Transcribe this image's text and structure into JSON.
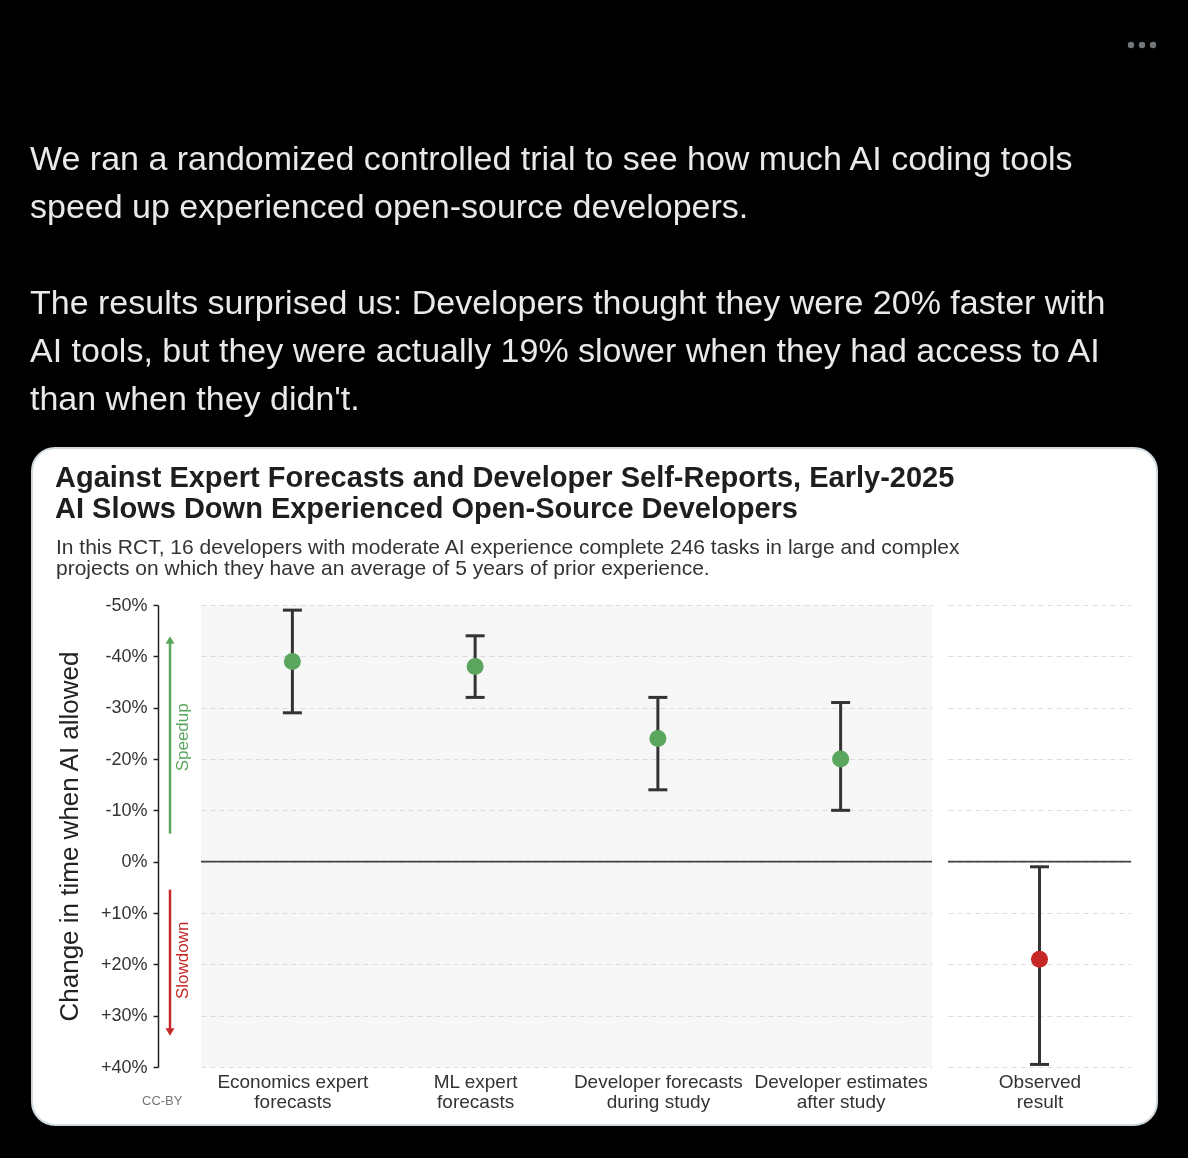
{
  "chart_data": [
    {
      "type": "scatter",
      "title": "Against Expert Forecasts and Developer Self-Reports, Early-2025 AI Slows Down Experienced Open-Source Developers",
      "subtitle": "In this RCT, 16 developers with moderate AI experience complete 246 tasks in large and complex projects on which they have an average of 5 years of prior experience.",
      "ylabel": "Change in time when AI allowed",
      "annotations": [
        "We ran a randomized controlled trial to see how much AI coding tools speed up experienced open-source developers.",
        "The results surprised us: Developers thought they were 20% faster with AI tools, but they were actually 19% slower when they had access to AI than when they didn't.",
        "Speedup",
        "Slowdown",
        "CC-BY"
      ],
      "categories": [
        "Economics expert forecasts",
        "ML expert forecasts",
        "Developer forecasts during study",
        "Developer estimates after study"
      ],
      "series": [
        {
          "color": "#5aa65e",
          "values": [
            -39,
            -38,
            -24,
            -20
          ],
          "errors": [
            [
              -49,
              -29
            ],
            [
              -44,
              -32
            ],
            [
              -32,
              -14
            ],
            [
              -31,
              -10
            ]
          ]
        }
      ],
      "ylim": [
        40,
        -50
      ],
      "yticks": [
        {
          "value": -50,
          "label": "-50%"
        },
        {
          "value": -40,
          "label": "-40%"
        },
        {
          "value": -30,
          "label": "-30%"
        },
        {
          "value": -20,
          "label": "-20%"
        },
        {
          "value": -10,
          "label": "-10%"
        },
        {
          "value": 0,
          "label": "0%"
        },
        {
          "value": 10,
          "label": "+10%"
        },
        {
          "value": 20,
          "label": "+20%"
        },
        {
          "value": 30,
          "label": "+30%"
        },
        {
          "value": 40,
          "label": "+40%"
        }
      ],
      "grid": "y",
      "marker": "circle",
      "ref_lines": [
        {
          "axis": "y",
          "value": 0,
          "color": "#444444"
        }
      ]
    },
    {
      "type": "scatter",
      "categories": [
        "Observed result"
      ],
      "series": [
        {
          "color": "#c62828",
          "values": [
            19
          ],
          "errors": [
            [
              1,
              39.5
            ]
          ]
        }
      ],
      "ylim": [
        40,
        -50
      ],
      "yticks": [
        -50,
        -40,
        -30,
        -20,
        -10,
        0,
        10,
        20,
        30,
        40
      ],
      "tick_labels": "x",
      "grid": "y",
      "marker": "circle",
      "ref_lines": [
        {
          "axis": "y",
          "value": 0,
          "color": "#444444"
        }
      ]
    }
  ]
}
